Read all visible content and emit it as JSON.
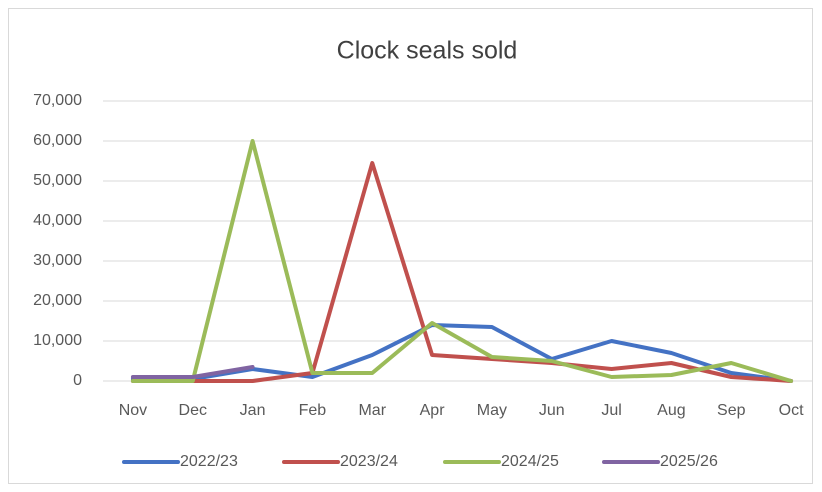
{
  "chart_data": {
    "type": "line",
    "title": "Clock seals sold",
    "categories": [
      "Nov",
      "Dec",
      "Jan",
      "Feb",
      "Mar",
      "Apr",
      "May",
      "Jun",
      "Jul",
      "Aug",
      "Sep",
      "Oct"
    ],
    "series": [
      {
        "name": "2022/23",
        "color": "#4472c4",
        "values": [
          500,
          500,
          3000,
          1000,
          6500,
          14000,
          13500,
          5500,
          10000,
          7000,
          2000,
          0
        ]
      },
      {
        "name": "2023/24",
        "color": "#c0504d",
        "values": [
          0,
          0,
          0,
          2000,
          54500,
          6500,
          5500,
          4500,
          3000,
          4500,
          1000,
          0
        ]
      },
      {
        "name": "2024/25",
        "color": "#9bbb59",
        "values": [
          0,
          0,
          60000,
          2000,
          2000,
          14500,
          6000,
          5000,
          1000,
          1500,
          4500,
          0
        ]
      },
      {
        "name": "2025/26",
        "color": "#8064a2",
        "values": [
          1000,
          1000,
          3500,
          null,
          null,
          null,
          null,
          null,
          null,
          null,
          null,
          null
        ]
      }
    ],
    "ylim": [
      0,
      70000
    ],
    "yticks": [
      0,
      {
        "value": 10000,
        "label": "10,000"
      },
      {
        "value": 20000,
        "label": "20,000"
      },
      {
        "value": 30000,
        "label": "30,000"
      },
      {
        "value": 40000,
        "label": "40,000"
      },
      {
        "value": 50000,
        "label": "50,000"
      },
      {
        "value": 60000,
        "label": "60,000"
      },
      {
        "value": 70000,
        "label": "70,000"
      }
    ],
    "grid": true,
    "legend": "bottom"
  }
}
